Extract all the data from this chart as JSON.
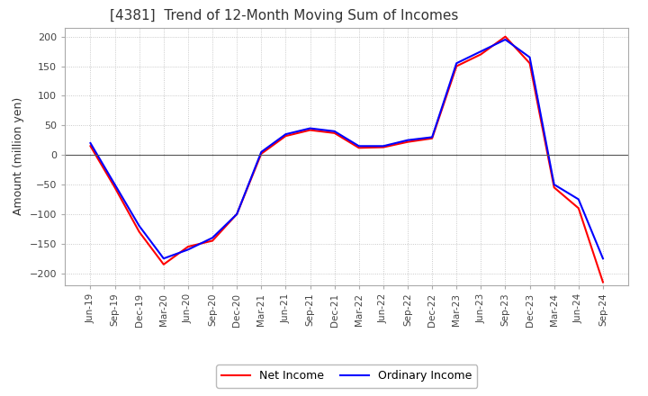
{
  "title": "[4381]  Trend of 12-Month Moving Sum of Incomes",
  "ylabel": "Amount (million yen)",
  "ordinary_income": {
    "dates": [
      "Jun-19",
      "Sep-19",
      "Dec-19",
      "Mar-20",
      "Jun-20",
      "Sep-20",
      "Dec-20",
      "Mar-21",
      "Jun-21",
      "Sep-21",
      "Dec-21",
      "Mar-22",
      "Jun-22",
      "Sep-22",
      "Dec-22",
      "Mar-23",
      "Jun-23",
      "Sep-23",
      "Dec-23",
      "Mar-24",
      "Jun-24",
      "Sep-24"
    ],
    "values": [
      20,
      -50,
      -120,
      -175,
      -160,
      -140,
      -100,
      5,
      35,
      45,
      40,
      15,
      15,
      25,
      30,
      155,
      175,
      195,
      165,
      -50,
      -75,
      -175
    ]
  },
  "net_income": {
    "dates": [
      "Jun-19",
      "Sep-19",
      "Dec-19",
      "Mar-20",
      "Jun-20",
      "Sep-20",
      "Dec-20",
      "Mar-21",
      "Jun-21",
      "Sep-21",
      "Dec-21",
      "Mar-22",
      "Jun-22",
      "Sep-22",
      "Dec-22",
      "Mar-23",
      "Jun-23",
      "Sep-23",
      "Dec-23",
      "Mar-24",
      "Jun-24",
      "Sep-24"
    ],
    "values": [
      15,
      -55,
      -130,
      -185,
      -155,
      -145,
      -100,
      2,
      32,
      42,
      37,
      12,
      13,
      22,
      28,
      150,
      170,
      200,
      155,
      -55,
      -90,
      -215
    ]
  },
  "ordinary_color": "#0000ff",
  "net_color": "#ff0000",
  "ylim": [
    -220,
    215
  ],
  "yticks": [
    -200,
    -150,
    -100,
    -50,
    0,
    50,
    100,
    150,
    200
  ],
  "grid_color": "#bbbbbb",
  "background_color": "#ffffff",
  "legend_labels": [
    "Ordinary Income",
    "Net Income"
  ],
  "line_width": 1.5
}
